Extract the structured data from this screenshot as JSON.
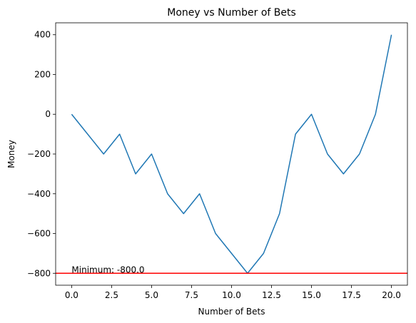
{
  "chart_data": {
    "type": "line",
    "title": "Money vs Number of Bets",
    "xlabel": "Number of Bets",
    "ylabel": "Money",
    "xlim": [
      -1,
      21
    ],
    "ylim": [
      -860,
      460
    ],
    "x_ticks": [
      0,
      2.5,
      5,
      7.5,
      10,
      12.5,
      15,
      17.5,
      20
    ],
    "x_tick_labels": [
      "0.0",
      "2.5",
      "5.0",
      "7.5",
      "10.0",
      "12.5",
      "15.0",
      "17.5",
      "20.0"
    ],
    "y_ticks": [
      -800,
      -600,
      -400,
      -200,
      0,
      200,
      400
    ],
    "y_tick_labels": [
      "−800",
      "−600",
      "−400",
      "−200",
      "0",
      "200",
      "400"
    ],
    "grid": false,
    "series": [
      {
        "color": "#1f77b4",
        "x": [
          0,
          1,
          2,
          3,
          4,
          5,
          6,
          7,
          8,
          9,
          10,
          11,
          12,
          13,
          14,
          15,
          16,
          17,
          18,
          19,
          20
        ],
        "values": [
          0,
          -100,
          -200,
          -100,
          -300,
          -200,
          -400,
          -500,
          -400,
          -600,
          -700,
          -800,
          -700,
          -500,
          -100,
          0,
          -200,
          -300,
          -200,
          0,
          400
        ]
      }
    ],
    "hline": {
      "y": -800,
      "color": "#ff0000"
    },
    "annotation": {
      "text": "Minimum: -800.0",
      "x": 0,
      "y": -800
    }
  }
}
